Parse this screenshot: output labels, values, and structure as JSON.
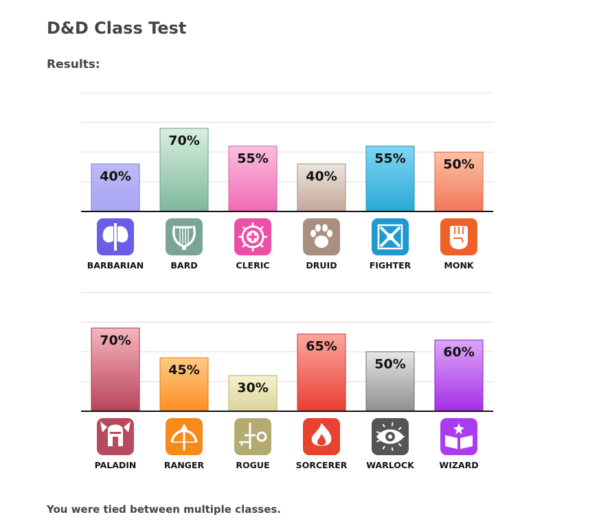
{
  "page": {
    "title": "D&D Class Test",
    "results_label": "Results:",
    "footer": "You were tied between multiple classes."
  },
  "chart_data": [
    {
      "type": "bar",
      "categories": [
        "BARBARIAN",
        "BARD",
        "CLERIC",
        "DRUID",
        "FIGHTER",
        "MONK"
      ],
      "values": [
        40,
        70,
        55,
        40,
        55,
        50
      ],
      "value_labels": [
        "40%",
        "70%",
        "55%",
        "40%",
        "55%",
        "50%"
      ],
      "icons": [
        "double-axe-icon",
        "lyre-icon",
        "holy-symbol-icon",
        "paw-print-icon",
        "crossed-swords-icon",
        "fist-icon"
      ],
      "colors": [
        {
          "top": "#bdb9f7",
          "bottom": "#a9a5f2",
          "edge": "#7b75e3",
          "icon": "#6a5de8"
        },
        {
          "top": "#d8efe0",
          "bottom": "#7fb79b",
          "edge": "#6a9c84",
          "icon": "#7aa596"
        },
        {
          "top": "#fbbede",
          "bottom": "#f06ab5",
          "edge": "#d9579c",
          "icon": "#ee4fa6"
        },
        {
          "top": "#ece4dd",
          "bottom": "#c4a99a",
          "edge": "#a08a7e",
          "icon": "#a88f7f"
        },
        {
          "top": "#7fd6f2",
          "bottom": "#2aa9d6",
          "edge": "#1f8fb8",
          "icon": "#1f9ad1"
        },
        {
          "top": "#fcc1a5",
          "bottom": "#f0785a",
          "edge": "#df6040",
          "icon": "#ee6128"
        }
      ],
      "ylim": [
        0,
        100
      ],
      "grid": true
    },
    {
      "type": "bar",
      "categories": [
        "PALADIN",
        "RANGER",
        "ROGUE",
        "SORCERER",
        "WARLOCK",
        "WIZARD"
      ],
      "values": [
        70,
        45,
        30,
        65,
        50,
        60
      ],
      "value_labels": [
        "70%",
        "45%",
        "30%",
        "65%",
        "50%",
        "60%"
      ],
      "icons": [
        "winged-helm-icon",
        "bow-and-arrow-icon",
        "dagger-and-key-icon",
        "flame-icon",
        "eye-sigil-icon",
        "spellbook-icon"
      ],
      "colors": [
        {
          "top": "#f6b5bd",
          "bottom": "#b9435a",
          "edge": "#9e3447",
          "icon": "#b84a5e"
        },
        {
          "top": "#ffcb85",
          "bottom": "#fb8d22",
          "edge": "#e07a12",
          "icon": "#f88a1c"
        },
        {
          "top": "#f6f2cc",
          "bottom": "#dcd49c",
          "edge": "#b6ad72",
          "icon": "#b3ab72"
        },
        {
          "top": "#fba79f",
          "bottom": "#ea3e32",
          "edge": "#c9332a",
          "icon": "#e8432f"
        },
        {
          "top": "#e6e6e6",
          "bottom": "#8e8e8e",
          "edge": "#6e6e6e",
          "icon": "#555555"
        },
        {
          "top": "#dca6f6",
          "bottom": "#a52fe6",
          "edge": "#8c22c8",
          "icon": "#a93cef"
        }
      ],
      "ylim": [
        0,
        100
      ],
      "grid": true
    }
  ]
}
